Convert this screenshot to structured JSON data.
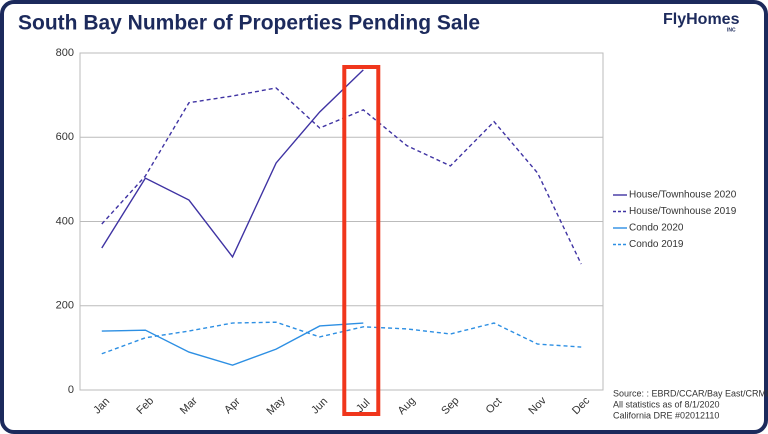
{
  "chart_data": {
    "type": "line",
    "title": "South Bay Number of Properties Pending Sale",
    "logo": "FlyHomes",
    "logo_suffix": "INC",
    "categories": [
      "Jan",
      "Feb",
      "Mar",
      "Apr",
      "May",
      "Jun",
      "Jul",
      "Aug",
      "Sep",
      "Oct",
      "Nov",
      "Dec"
    ],
    "series": [
      {
        "name": "House/Townhouse 2020",
        "color": "#3f33a3",
        "dashed": false,
        "values": [
          337,
          503,
          451,
          316,
          539,
          660,
          760,
          null,
          null,
          null,
          null,
          null
        ]
      },
      {
        "name": "House/Townhouse 2019",
        "color": "#3f33a3",
        "dashed": true,
        "values": [
          394,
          508,
          682,
          698,
          717,
          622,
          665,
          580,
          532,
          637,
          515,
          299
        ]
      },
      {
        "name": "Condo 2020",
        "color": "#2d8fe3",
        "dashed": false,
        "values": [
          140,
          142,
          90,
          59,
          97,
          152,
          159,
          null,
          null,
          null,
          null,
          null
        ]
      },
      {
        "name": "Condo 2019",
        "color": "#2d8fe3",
        "dashed": true,
        "values": [
          86,
          124,
          140,
          159,
          161,
          126,
          150,
          145,
          133,
          159,
          109,
          102
        ]
      }
    ],
    "ylim": [
      0,
      800
    ],
    "yticks": [
      0,
      200,
      400,
      600,
      800
    ],
    "grid": true,
    "highlight_color": "#f0361c",
    "notes": [
      "Source: : EBRD/CCAR/Bay East/CRMLS",
      "All statistics as of 8/1/2020",
      "California DRE #02012110"
    ]
  }
}
